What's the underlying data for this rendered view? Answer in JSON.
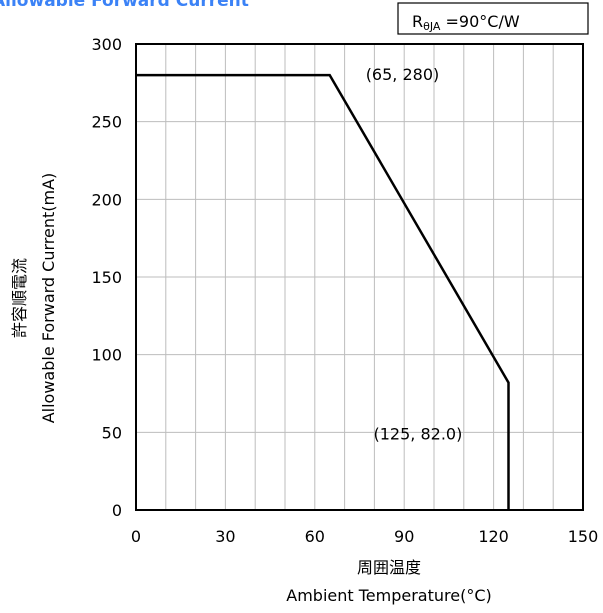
{
  "chart_data": {
    "type": "line",
    "title": "Allowable Forward Current",
    "rating_box": {
      "prefix": "R",
      "subscript": "θJA",
      "suffix": " =90°C/W"
    },
    "xlabel_ja": "周囲温度",
    "xlabel": "Ambient Temperature(°C)",
    "ylabel_ja": "許容順電流",
    "ylabel": "Allowable Forward Current(mA)",
    "xlim": [
      0,
      150
    ],
    "ylim": [
      0,
      300
    ],
    "x_ticks": [
      0,
      30,
      60,
      90,
      120,
      150
    ],
    "y_ticks": [
      0,
      50,
      100,
      150,
      200,
      250,
      300
    ],
    "x_ticks_labels": [
      "0",
      "30",
      "60",
      "90",
      "120",
      "150"
    ],
    "y_ticks_labels": [
      "0",
      "50",
      "100",
      "150",
      "200",
      "250",
      "300"
    ],
    "x_grid_step": 10,
    "y_grid_step": 50,
    "grid": true,
    "series": [
      {
        "x": [
          0,
          65,
          125,
          125
        ],
        "y": [
          280,
          280,
          82.0,
          0
        ],
        "color": "#000000"
      }
    ],
    "annotations": [
      {
        "text": "(65, 280)",
        "x": 65,
        "y": 280
      },
      {
        "text": "(125, 82.0)",
        "x": 125,
        "y": 82.0
      }
    ]
  }
}
